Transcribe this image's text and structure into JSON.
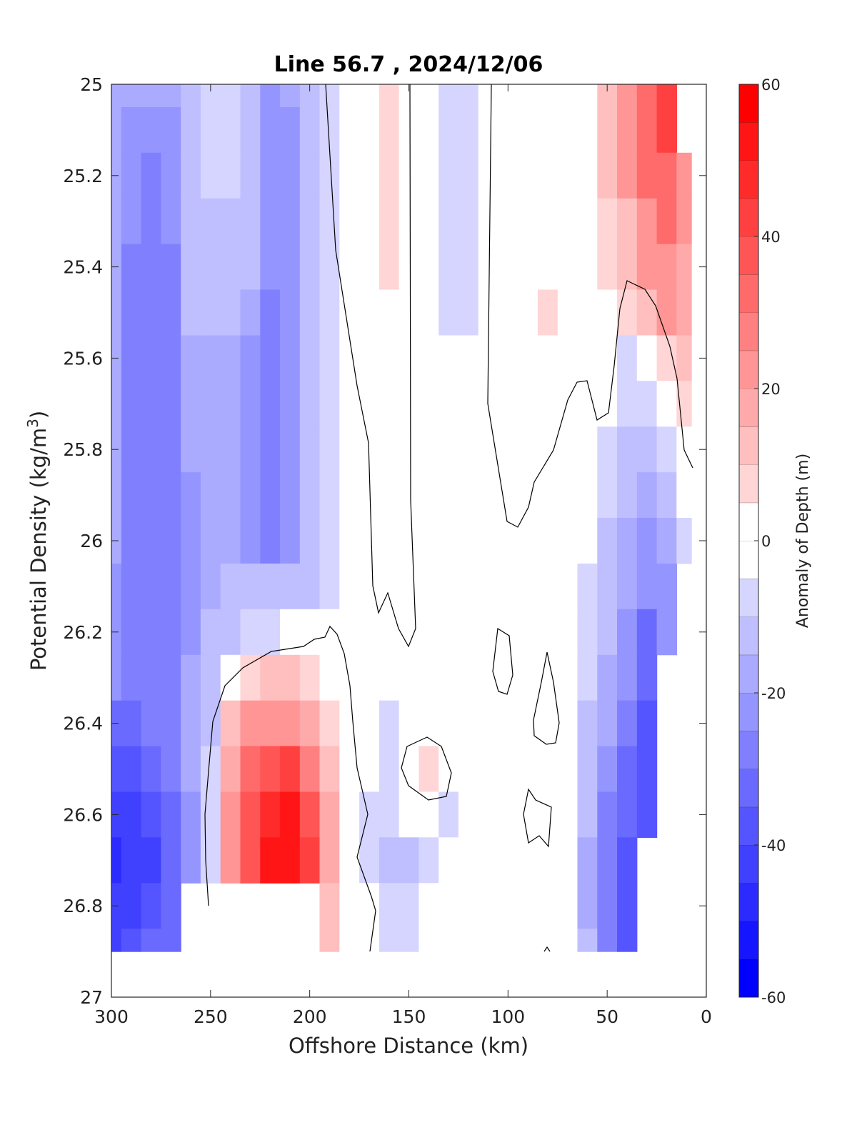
{
  "chart_data": {
    "type": "heatmap",
    "subtype": "filled-contour",
    "title": "Line 56.7 , 2024/12/06",
    "xlabel": "Offshore Distance (km)",
    "ylabel_prefix": "Potential Density (kg/m",
    "ylabel_superscript": "3",
    "ylabel_suffix": ")",
    "xlim": [
      300,
      0
    ],
    "x_reversed": true,
    "ylim": [
      25,
      27
    ],
    "y_reversed": true,
    "x_ticks": [
      "300",
      "250",
      "200",
      "150",
      "100",
      "50",
      "0"
    ],
    "y_ticks": [
      "25",
      "25.2",
      "25.4",
      "25.6",
      "25.8",
      "26",
      "26.2",
      "26.4",
      "26.6",
      "26.8",
      "27"
    ],
    "colorbar": {
      "label": "Anomaly of Depth (m)",
      "range": [
        -60,
        60
      ],
      "step": 5,
      "ticks": [
        "60",
        "40",
        "20",
        "0",
        "-20",
        "-40",
        "-60"
      ],
      "colors": {
        "negative": "#0000ff",
        "neutral": "#ffffff",
        "positive": "#ff0000"
      }
    },
    "x_distances": [
      300,
      290,
      280,
      270,
      260,
      250,
      240,
      230,
      220,
      210,
      200,
      190,
      180,
      170,
      160,
      150,
      140,
      130,
      120,
      110,
      100,
      90,
      80,
      70,
      60,
      50,
      40,
      30,
      20,
      10,
      5
    ],
    "y_densities": [
      25.0,
      25.1,
      25.2,
      25.3,
      25.4,
      25.5,
      25.6,
      25.7,
      25.8,
      25.9,
      26.0,
      26.1,
      26.2,
      26.3,
      26.4,
      26.5,
      26.6,
      26.7,
      26.8,
      26.9
    ],
    "anomaly_m": [
      [
        -17,
        -17,
        -17,
        -17,
        -13,
        -8,
        -8,
        -14,
        -20,
        -18,
        -12,
        -6,
        -1,
        0,
        8,
        2,
        -2,
        -6,
        -6,
        0,
        0,
        0,
        0,
        0,
        4,
        12,
        22,
        34,
        42,
        null,
        null
      ],
      [
        -17,
        -20,
        -23,
        -24,
        -13,
        -8,
        -8,
        -14,
        -20,
        -21,
        -12,
        -6,
        -1,
        0,
        8,
        2,
        -2,
        -6,
        -6,
        0,
        0,
        0,
        0,
        0,
        4,
        12,
        22,
        34,
        42,
        null,
        null
      ],
      [
        -17,
        -23,
        -26,
        -24,
        -13,
        -8,
        -8,
        -14,
        -23,
        -21,
        -12,
        -6,
        -1,
        0,
        8,
        2,
        -2,
        -6,
        -6,
        0,
        0,
        0,
        0,
        0,
        4,
        12,
        22,
        34,
        34,
        24,
        null
      ],
      [
        -17,
        -23,
        -29,
        -24,
        -13,
        -12,
        -12,
        -14,
        -23,
        -21,
        -12,
        -6,
        -1,
        0,
        8,
        2,
        -2,
        -6,
        -6,
        0,
        0,
        0,
        0,
        0,
        4,
        8,
        12,
        22,
        30,
        24,
        null
      ],
      [
        -17,
        -26,
        -29,
        -27,
        -13,
        -12,
        -12,
        -14,
        -23,
        -24,
        -12,
        -6,
        -1,
        0,
        8,
        2,
        -2,
        -6,
        -6,
        0,
        0,
        0,
        4,
        0,
        4,
        8,
        12,
        22,
        22,
        16,
        null
      ],
      [
        -17,
        -26,
        -29,
        -27,
        -13,
        -12,
        -12,
        -17,
        -25,
        -24,
        -12,
        -6,
        -1,
        0,
        2,
        2,
        -2,
        -6,
        -6,
        0,
        0,
        0,
        8,
        0,
        0,
        0,
        8,
        12,
        22,
        16,
        null
      ],
      [
        -17,
        -26,
        -29,
        -27,
        -17,
        -16,
        -16,
        -20,
        -26,
        -24,
        -12,
        -6,
        -1,
        0,
        0,
        0,
        0,
        -2,
        0,
        0,
        0,
        0,
        4,
        0,
        0,
        -2,
        -6,
        0,
        8,
        12,
        null
      ],
      [
        -17,
        -26,
        -29,
        -27,
        -17,
        -16,
        -16,
        -20,
        -28,
        -24,
        -12,
        -6,
        -1,
        0,
        0,
        0,
        0,
        0,
        0,
        0,
        0,
        0,
        0,
        0,
        0,
        -2,
        -8,
        -8,
        -4,
        8,
        null
      ],
      [
        -17,
        -26,
        -29,
        -27,
        -17,
        -16,
        -16,
        -22,
        -29,
        -24,
        -12,
        -6,
        -1,
        0,
        0,
        0,
        0,
        0,
        0,
        0,
        0,
        0,
        0,
        0,
        0,
        -6,
        -10,
        -14,
        -8,
        0,
        null
      ],
      [
        -17,
        -26,
        -29,
        -27,
        -20,
        -16,
        -16,
        -22,
        -28,
        -21,
        -12,
        -6,
        -1,
        0,
        0,
        0,
        0,
        0,
        0,
        0,
        0,
        0,
        0,
        0,
        -2,
        -8,
        -14,
        -17,
        -12,
        -4,
        null
      ],
      [
        -17,
        -26,
        -29,
        -27,
        -20,
        -16,
        -16,
        -22,
        -25,
        -21,
        -12,
        -6,
        -1,
        0,
        0,
        0,
        0,
        0,
        0,
        0,
        0,
        0,
        0,
        0,
        -4,
        -10,
        -16,
        -20,
        -16,
        -8,
        null
      ],
      [
        -21,
        -26,
        -29,
        -27,
        -20,
        -16,
        -14,
        -13,
        -14,
        -13,
        -10,
        -6,
        -1,
        0,
        0,
        0,
        0,
        0,
        0,
        0,
        0,
        0,
        0,
        0,
        -6,
        -12,
        -18,
        -24,
        -20,
        null,
        null
      ],
      [
        -21,
        -26,
        -29,
        -27,
        -20,
        -14,
        -10,
        -8,
        -5,
        -3,
        -2,
        0,
        0,
        0,
        0,
        0,
        0,
        0,
        0,
        0,
        0,
        0,
        0,
        -2,
        -8,
        -14,
        -20,
        -30,
        -20,
        null,
        null
      ],
      [
        -24,
        -26,
        -29,
        -27,
        -18,
        -12,
        -4,
        8,
        10,
        12,
        8,
        2,
        0,
        0,
        -4,
        0,
        0,
        0,
        0,
        0,
        0,
        0,
        0,
        -2,
        -8,
        -16,
        -24,
        -34,
        null,
        null,
        null
      ],
      [
        -30,
        -30,
        -29,
        -27,
        -18,
        -10,
        12,
        22,
        24,
        24,
        18,
        8,
        0,
        -4,
        -6,
        -4,
        -4,
        -4,
        0,
        0,
        0,
        0,
        0,
        -2,
        -10,
        -18,
        -28,
        -36,
        null,
        null,
        null
      ],
      [
        -36,
        -36,
        -32,
        -27,
        -18,
        -8,
        18,
        32,
        38,
        40,
        28,
        12,
        0,
        -4,
        -6,
        4,
        8,
        -4,
        -4,
        0,
        0,
        0,
        0,
        -4,
        -12,
        -22,
        -32,
        -36,
        null,
        null,
        null
      ],
      [
        -42,
        -40,
        -36,
        -30,
        -20,
        -8,
        20,
        36,
        48,
        50,
        36,
        16,
        0,
        -6,
        -8,
        -4,
        -4,
        -6,
        -4,
        0,
        0,
        0,
        0,
        -4,
        -14,
        -26,
        -34,
        -36,
        null,
        null,
        null
      ],
      [
        -48,
        -44,
        -40,
        -32,
        -20,
        -8,
        20,
        38,
        52,
        54,
        40,
        18,
        0,
        -6,
        -12,
        -10,
        -6,
        -4,
        -4,
        0,
        0,
        0,
        0,
        -4,
        -16,
        -28,
        -36,
        null,
        null,
        null,
        null
      ],
      [
        -44,
        -40,
        -36,
        -30,
        null,
        null,
        null,
        null,
        null,
        null,
        null,
        14,
        4,
        -2,
        -8,
        -6,
        -4,
        -4,
        -2,
        0,
        0,
        0,
        0,
        -2,
        -16,
        -28,
        -36,
        null,
        null,
        null,
        null
      ],
      [
        -40,
        -38,
        -34,
        -30,
        null,
        null,
        null,
        null,
        null,
        null,
        null,
        10,
        2,
        -2,
        -6,
        -6,
        -4,
        -2,
        -2,
        0,
        0,
        0,
        0,
        -2,
        -14,
        -28,
        -36,
        null,
        null,
        null,
        null
      ]
    ]
  }
}
